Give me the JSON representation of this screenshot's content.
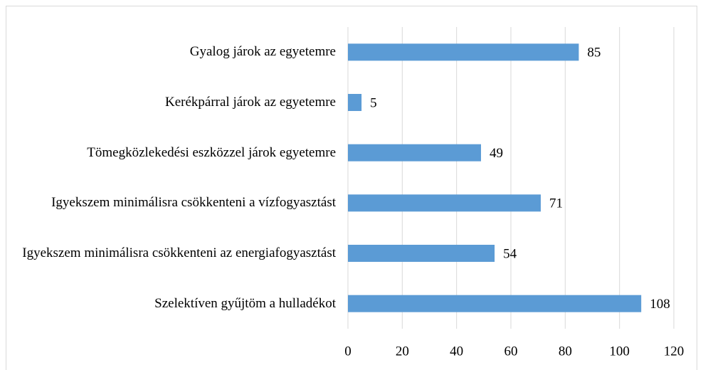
{
  "chart_data": {
    "type": "bar",
    "orientation": "horizontal",
    "categories": [
      "Gyalog járok az egyetemre",
      "Kerékpárral járok az egyetemre",
      "Tömegközlekedési eszközzel járok egyetemre",
      "Igyekszem minimálisra csökkenteni a vízfogyasztást",
      "Igyekszem minimálisra csökkenteni az energiafogyasztást",
      "Szelektíven gyűjtöm a hulladékot"
    ],
    "values": [
      85,
      5,
      49,
      71,
      54,
      108
    ],
    "color": "#5b9bd5",
    "xlim": [
      0,
      120
    ],
    "xticks": [
      0,
      20,
      40,
      60,
      80,
      100,
      120
    ],
    "grid": true
  }
}
